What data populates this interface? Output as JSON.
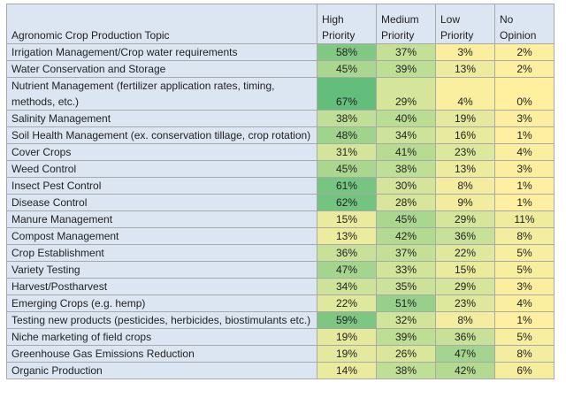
{
  "table": {
    "header": [
      "Agronomic Crop Production Topic",
      "High Priority",
      "Medium Priority",
      "Low Priority",
      "No Opinion"
    ],
    "rows": [
      [
        "Irrigation Management/Crop water requirements",
        "58%",
        "37%",
        "3%",
        "2%"
      ],
      [
        "Water Conservation and Storage",
        "45%",
        "39%",
        "13%",
        "2%"
      ],
      [
        "Nutrient Management (fertilizer application rates, timing, methods, etc.)",
        "67%",
        "29%",
        "4%",
        "0%"
      ],
      [
        "Salinity Management",
        "38%",
        "40%",
        "19%",
        "3%"
      ],
      [
        "Soil Health Management (ex. conservation tillage, crop rotation)",
        "48%",
        "34%",
        "16%",
        "1%"
      ],
      [
        "Cover Crops",
        "31%",
        "41%",
        "23%",
        "4%"
      ],
      [
        "Weed Control",
        "45%",
        "38%",
        "13%",
        "3%"
      ],
      [
        "Insect Pest Control",
        "61%",
        "30%",
        "8%",
        "1%"
      ],
      [
        "Disease Control",
        "62%",
        "28%",
        "9%",
        "1%"
      ],
      [
        "Manure Management",
        "15%",
        "45%",
        "29%",
        "11%"
      ],
      [
        "Compost Management",
        "13%",
        "42%",
        "36%",
        "8%"
      ],
      [
        "Crop Establishment",
        "36%",
        "37%",
        "22%",
        "5%"
      ],
      [
        "Variety Testing",
        "47%",
        "33%",
        "15%",
        "5%"
      ],
      [
        "Harvest/Postharvest",
        "34%",
        "35%",
        "29%",
        "3%"
      ],
      [
        "Emerging Crops (e.g. hemp)",
        "22%",
        "51%",
        "23%",
        "4%"
      ],
      [
        "Testing new products (pesticides, herbicides, biostimulants etc.)",
        "59%",
        "32%",
        "8%",
        "1%"
      ],
      [
        "Niche marketing of field crops",
        "19%",
        "39%",
        "36%",
        "5%"
      ],
      [
        "Greenhouse Gas Emissions Reduction",
        "19%",
        "26%",
        "47%",
        "8%"
      ],
      [
        "Organic Production",
        "14%",
        "38%",
        "42%",
        "6%"
      ]
    ]
  }
}
